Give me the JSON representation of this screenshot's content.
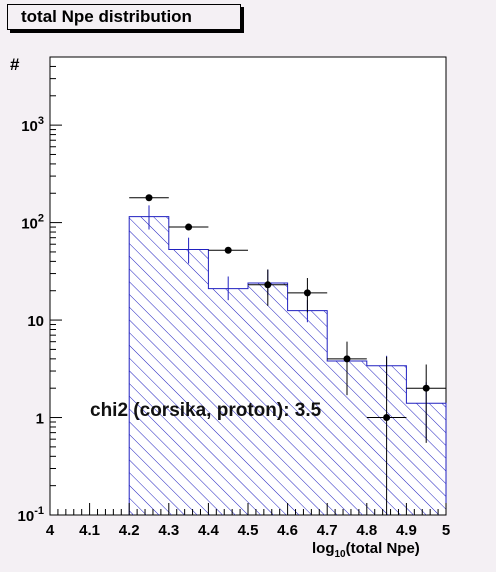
{
  "chart_data": {
    "type": "histogram",
    "title": "total Npe distribution",
    "xlabel_main": "log",
    "xlabel_sub": "10",
    "xlabel_rest": "(total Npe)",
    "ylabel": "#",
    "xlim": [
      4.0,
      5.0
    ],
    "ylim": [
      0.1,
      5000
    ],
    "yscale": "log",
    "x_ticks": [
      "4",
      "4.1",
      "4.2",
      "4.3",
      "4.4",
      "4.5",
      "4.6",
      "4.7",
      "4.8",
      "4.9",
      "5"
    ],
    "y_tick_labels": [
      {
        "base": "10",
        "exp": "-1",
        "value": 0.1
      },
      {
        "base": "1",
        "exp": "",
        "value": 1
      },
      {
        "base": "10",
        "exp": "",
        "value": 10
      },
      {
        "base": "10",
        "exp": "2",
        "value": 100
      },
      {
        "base": "10",
        "exp": "3",
        "value": 1000
      }
    ],
    "histogram": {
      "bin_edges": [
        4.2,
        4.3,
        4.4,
        4.5,
        4.6,
        4.7,
        4.8,
        4.9,
        5.0
      ],
      "values": [
        115,
        53,
        21,
        24,
        12.5,
        3.8,
        3.4,
        1.4
      ],
      "errors_low": [
        85,
        38,
        16,
        18,
        9.5,
        2.2,
        1.6,
        0.6
      ],
      "errors_high": [
        150,
        70,
        28,
        33,
        16,
        5.0,
        4.3,
        2.3
      ],
      "color": "#2020c0"
    },
    "data_points": {
      "x": [
        4.25,
        4.35,
        4.45,
        4.55,
        4.65,
        4.75,
        4.85,
        4.95
      ],
      "y": [
        180,
        90,
        52,
        23,
        19,
        4.0,
        1.0,
        2.0
      ],
      "y_low": [
        180,
        90,
        52,
        14,
        12,
        1.7,
        0.1,
        0.55
      ],
      "y_high": [
        180,
        90,
        52,
        33,
        27,
        6.0,
        4.2,
        3.5
      ],
      "color": "#000000"
    },
    "annotation": "chi2 (corsika, proton): 3.5",
    "grid": false
  }
}
